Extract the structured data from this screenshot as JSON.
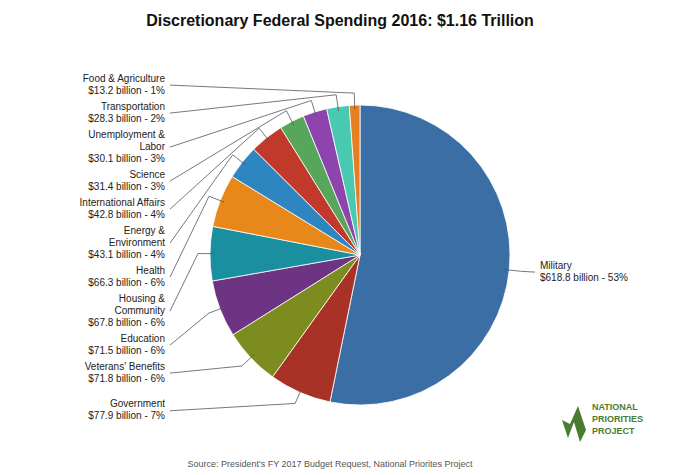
{
  "chart_data": {
    "type": "pie",
    "title": "Discretionary Federal Spending 2016: $1.16 Trillion",
    "categories": [
      "Military",
      "Government",
      "Veterans' Benefits",
      "Education",
      "Housing &\nCommunity",
      "Health",
      "Energy &\nEnvironment",
      "International Affairs",
      "Science",
      "Unemployment &\nLabor",
      "Transportation",
      "Food & Agriculture"
    ],
    "values": [
      618.8,
      77.9,
      71.8,
      71.5,
      67.8,
      66.3,
      43.1,
      42.8,
      31.4,
      30.1,
      28.3,
      13.2
    ],
    "value_labels": [
      "$618.8 billion - 53%",
      "$77.9 billion - 7%",
      "$71.8 billion - 6%",
      "$71.5 billion - 6%",
      "$67.8 billion - 6%",
      "$66.3 billion - 6%",
      "$43.1 billion - 4%",
      "$42.8 billion - 4%",
      "$31.4 billion - 3%",
      "$30.1 billion - 3%",
      "$28.3 billion - 2%",
      "$13.2 billion - 1%"
    ],
    "colors": [
      "#3B6EA5",
      "#A93226",
      "#7D8C1F",
      "#6C3483",
      "#1A8FA0",
      "#E8871A",
      "#2E86C1",
      "#C0392B",
      "#58A65C",
      "#8E44AD",
      "#48C9B0",
      "#E67E22"
    ],
    "data_labels": true,
    "annotations": [
      "Source: President's FY 2017 Budget Request, National Priorites Project",
      "NATIONAL",
      "PRIORITIES",
      "PROJECT"
    ]
  }
}
